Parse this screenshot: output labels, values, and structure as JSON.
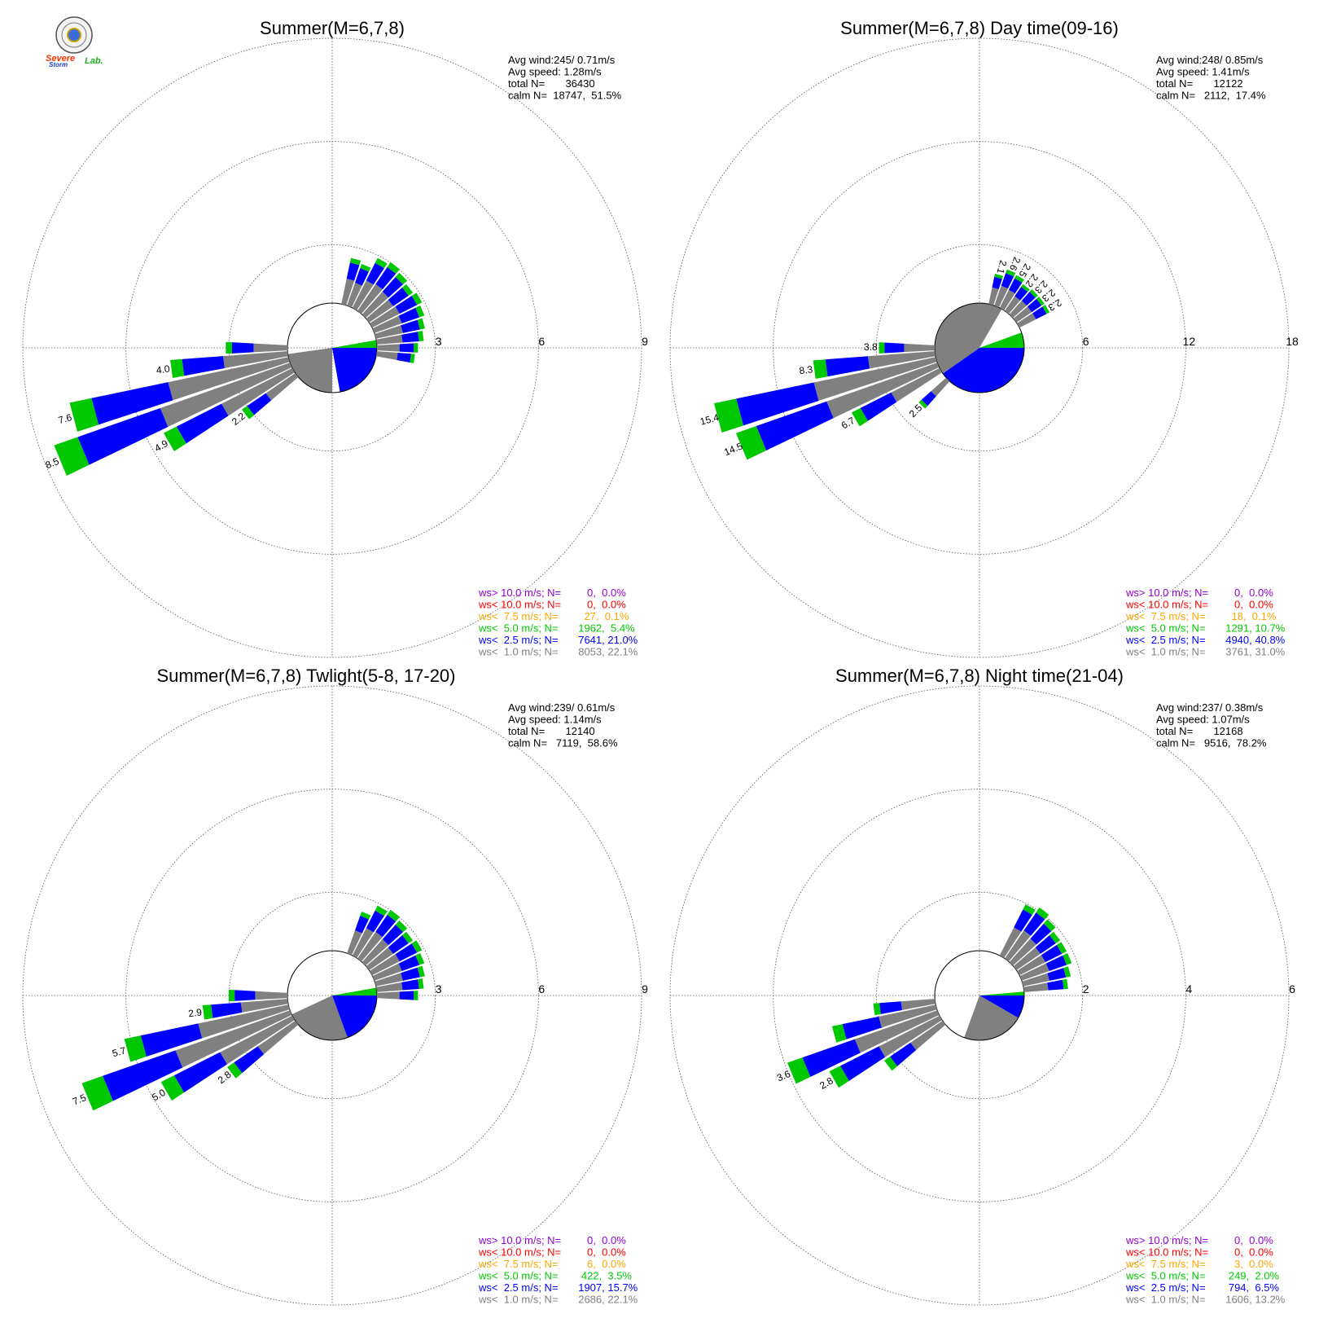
{
  "colors": {
    "ws_gt_10": "#9400d3",
    "ws_lt_10": "#ff0000",
    "ws_lt_7_5": "#ffa500",
    "ws_lt_5": "#00c800",
    "ws_lt_2_5": "#0000ff",
    "ws_lt_1": "#808080"
  },
  "logo": {
    "text_lines": [
      "Severe",
      "Storm",
      "Lab."
    ]
  },
  "chart_data": [
    {
      "type": "wind-rose",
      "title": "Summer(M=6,7,8)",
      "ticks": [
        "3",
        "6",
        "9"
      ],
      "rmax": 9,
      "stats": [
        "Avg wind:245/ 0.71m/s",
        "Avg speed: 1.28m/s",
        "total N=       36430",
        "calm N=  18747,  51.5%"
      ],
      "legend": [
        {
          "label": "ws> 10.0 m/s; N=",
          "value": "     0,  0.0%",
          "color": "#9400d3"
        },
        {
          "label": "ws< 10.0 m/s; N=",
          "value": "     0,  0.0%",
          "color": "#ff0000"
        },
        {
          "label": "ws<  7.5 m/s; N=",
          "value": "    27,  0.1%",
          "color": "#ffa500"
        },
        {
          "label": "ws<  5.0 m/s; N=",
          "value": "  1962,  5.4%",
          "color": "#00c800"
        },
        {
          "label": "ws<  2.5 m/s; N=",
          "value": "  7641, 21.0%",
          "color": "#0000ff"
        },
        {
          "label": "ws<  1.0 m/s; N=",
          "value": "  8053, 22.1%",
          "color": "#808080"
        }
      ],
      "sectors": [
        {
          "dir": 247.5,
          "value": 8.5,
          "label": "8.5"
        },
        {
          "dir": 240,
          "value": 4.9,
          "label": "4.9"
        },
        {
          "dir": 232.5,
          "value": 2.2,
          "label": "2.2"
        },
        {
          "dir": 255,
          "value": 7.6,
          "label": "7.6"
        },
        {
          "dir": 262.5,
          "value": 4.0,
          "label": "4.0"
        },
        {
          "dir": 270,
          "value": 2.1,
          "label": ""
        },
        {
          "dir": 30,
          "value": 1.9,
          "label": ""
        },
        {
          "dir": 37.5,
          "value": 2.0,
          "label": ""
        },
        {
          "dir": 45,
          "value": 1.9,
          "label": ""
        },
        {
          "dir": 52.5,
          "value": 1.8,
          "label": ""
        },
        {
          "dir": 60,
          "value": 1.9,
          "label": ""
        },
        {
          "dir": 67.5,
          "value": 1.8,
          "label": ""
        },
        {
          "dir": 75,
          "value": 1.7,
          "label": ""
        },
        {
          "dir": 82.5,
          "value": 1.6,
          "label": ""
        },
        {
          "dir": 22.5,
          "value": 1.5,
          "label": ""
        },
        {
          "dir": 15,
          "value": 1.6,
          "label": ""
        },
        {
          "dir": 90,
          "value": 1.4,
          "label": ""
        },
        {
          "dir": 97.5,
          "value": 1.3,
          "label": ""
        }
      ],
      "calm_wedges": [
        {
          "from": 90,
          "to": 170,
          "r": 1.6,
          "color": "#0000ff"
        },
        {
          "from": 180,
          "to": 262,
          "r": 1.4,
          "color": "#808080"
        },
        {
          "from": 80,
          "to": 90,
          "r": 1.4,
          "color": "#00c800"
        }
      ]
    },
    {
      "type": "wind-rose",
      "title": "Summer(M=6,7,8) Day time(09-16)",
      "ticks": [
        "6",
        "12",
        "18"
      ],
      "rmax": 18,
      "stats": [
        "Avg wind:248/ 0.85m/s",
        "Avg speed: 1.41m/s",
        "total N=       12122",
        "calm N=   2112,  17.4%"
      ],
      "legend": [
        {
          "label": "ws> 10.0 m/s; N=",
          "value": "     0,  0.0%",
          "color": "#9400d3"
        },
        {
          "label": "ws< 10.0 m/s; N=",
          "value": "     0,  0.0%",
          "color": "#ff0000"
        },
        {
          "label": "ws<  7.5 m/s; N=",
          "value": "    18,  0.1%",
          "color": "#ffa500"
        },
        {
          "label": "ws<  5.0 m/s; N=",
          "value": "  1291, 10.7%",
          "color": "#00c800"
        },
        {
          "label": "ws<  2.5 m/s; N=",
          "value": "  4940, 40.8%",
          "color": "#0000ff"
        },
        {
          "label": "ws<  1.0 m/s; N=",
          "value": "  3761, 31.0%",
          "color": "#808080"
        }
      ],
      "sectors": [
        {
          "dir": 247.5,
          "value": 14.5,
          "label": "14.5"
        },
        {
          "dir": 255,
          "value": 15.4,
          "label": "15.4"
        },
        {
          "dir": 240,
          "value": 6.7,
          "label": "6.7"
        },
        {
          "dir": 262.5,
          "value": 8.3,
          "label": "8.3"
        },
        {
          "dir": 270,
          "value": 3.8,
          "label": "3.8"
        },
        {
          "dir": 225,
          "value": 2.5,
          "label": "2.5"
        },
        {
          "dir": 15,
          "value": 2.1,
          "label": "2.1"
        },
        {
          "dir": 22.5,
          "value": 2.6,
          "label": "2.6"
        },
        {
          "dir": 30,
          "value": 2.5,
          "label": "2.5"
        },
        {
          "dir": 37.5,
          "value": 2.2,
          "label": "2.2"
        },
        {
          "dir": 45,
          "value": 2.3,
          "label": "2.3"
        },
        {
          "dir": 52.5,
          "value": 2.3,
          "label": "2.3"
        },
        {
          "dir": 60,
          "value": 2.3,
          "label": "2.3"
        }
      ],
      "calm_wedges": [
        {
          "from": 90,
          "to": 235,
          "r": 3.2,
          "color": "#0000ff"
        },
        {
          "from": 235,
          "to": 390,
          "r": 3.4,
          "color": "#808080"
        },
        {
          "from": 70,
          "to": 90,
          "r": 3.0,
          "color": "#00c800"
        }
      ]
    },
    {
      "type": "wind-rose",
      "title": "Summer(M=6,7,8) Twlight(5-8, 17-20)",
      "ticks": [
        "3",
        "6",
        "9"
      ],
      "rmax": 9,
      "stats": [
        "Avg wind:239/ 0.61m/s",
        "Avg speed: 1.14m/s",
        "total N=       12140",
        "calm N=   7119,  58.6%"
      ],
      "legend": [
        {
          "label": "ws> 10.0 m/s; N=",
          "value": "     0,  0.0%",
          "color": "#9400d3"
        },
        {
          "label": "ws< 10.0 m/s; N=",
          "value": "     0,  0.0%",
          "color": "#ff0000"
        },
        {
          "label": "ws<  7.5 m/s; N=",
          "value": "     6,  0.0%",
          "color": "#ffa500"
        },
        {
          "label": "ws<  5.0 m/s; N=",
          "value": "   422,  3.5%",
          "color": "#00c800"
        },
        {
          "label": "ws<  2.5 m/s; N=",
          "value": "  1907, 15.7%",
          "color": "#0000ff"
        },
        {
          "label": "ws<  1.0 m/s; N=",
          "value": "  2686, 22.1%",
          "color": "#808080"
        }
      ],
      "sectors": [
        {
          "dir": 247.5,
          "value": 7.5,
          "label": "7.5"
        },
        {
          "dir": 240,
          "value": 5.0,
          "label": "5.0"
        },
        {
          "dir": 232.5,
          "value": 2.8,
          "label": "2.8"
        },
        {
          "dir": 255,
          "value": 5.7,
          "label": "5.7"
        },
        {
          "dir": 262.5,
          "value": 2.9,
          "label": "2.9"
        },
        {
          "dir": 270,
          "value": 2.0,
          "label": ""
        },
        {
          "dir": 30,
          "value": 1.9,
          "label": ""
        },
        {
          "dir": 37.5,
          "value": 2.0,
          "label": ""
        },
        {
          "dir": 45,
          "value": 1.9,
          "label": ""
        },
        {
          "dir": 52.5,
          "value": 1.8,
          "label": ""
        },
        {
          "dir": 60,
          "value": 1.9,
          "label": ""
        },
        {
          "dir": 67.5,
          "value": 1.8,
          "label": ""
        },
        {
          "dir": 75,
          "value": 1.7,
          "label": ""
        },
        {
          "dir": 82.5,
          "value": 1.6,
          "label": ""
        },
        {
          "dir": 22.5,
          "value": 1.5,
          "label": ""
        },
        {
          "dir": 90,
          "value": 1.4,
          "label": ""
        }
      ],
      "calm_wedges": [
        {
          "from": 90,
          "to": 160,
          "r": 1.5,
          "color": "#0000ff"
        },
        {
          "from": 160,
          "to": 245,
          "r": 1.4,
          "color": "#808080"
        },
        {
          "from": 80,
          "to": 90,
          "r": 1.4,
          "color": "#00c800"
        }
      ]
    },
    {
      "type": "wind-rose",
      "title": "Summer(M=6,7,8) Night time(21-04)",
      "ticks": [
        "2",
        "4",
        "6"
      ],
      "rmax": 6,
      "stats": [
        "Avg wind:237/ 0.38m/s",
        "Avg speed: 1.07m/s",
        "total N=       12168",
        "calm N=   9516,  78.2%"
      ],
      "legend": [
        {
          "label": "ws> 10.0 m/s; N=",
          "value": "     0,  0.0%",
          "color": "#9400d3"
        },
        {
          "label": "ws< 10.0 m/s; N=",
          "value": "     0,  0.0%",
          "color": "#ff0000"
        },
        {
          "label": "ws<  7.5 m/s; N=",
          "value": "     3,  0.0%",
          "color": "#ffa500"
        },
        {
          "label": "ws<  5.0 m/s; N=",
          "value": "   249,  2.0%",
          "color": "#00c800"
        },
        {
          "label": "ws<  2.5 m/s; N=",
          "value": "   794,  6.5%",
          "color": "#0000ff"
        },
        {
          "label": "ws<  1.0 m/s; N=",
          "value": "  1606, 13.2%",
          "color": "#808080"
        }
      ],
      "sectors": [
        {
          "dir": 247.5,
          "value": 3.6,
          "label": "3.6"
        },
        {
          "dir": 240,
          "value": 2.8,
          "label": "2.8"
        },
        {
          "dir": 232.5,
          "value": 1.6,
          "label": ""
        },
        {
          "dir": 255,
          "value": 2.4,
          "label": ""
        },
        {
          "dir": 262.5,
          "value": 1.4,
          "label": ""
        },
        {
          "dir": 30,
          "value": 1.3,
          "label": ""
        },
        {
          "dir": 37.5,
          "value": 1.4,
          "label": ""
        },
        {
          "dir": 45,
          "value": 1.3,
          "label": ""
        },
        {
          "dir": 52.5,
          "value": 1.2,
          "label": ""
        },
        {
          "dir": 60,
          "value": 1.2,
          "label": ""
        },
        {
          "dir": 67.5,
          "value": 1.2,
          "label": ""
        },
        {
          "dir": 75,
          "value": 1.1,
          "label": ""
        },
        {
          "dir": 82.5,
          "value": 1.0,
          "label": ""
        }
      ],
      "calm_wedges": [
        {
          "from": 90,
          "to": 120,
          "r": 1.0,
          "color": "#0000ff"
        },
        {
          "from": 120,
          "to": 200,
          "r": 0.9,
          "color": "#808080"
        },
        {
          "from": 85,
          "to": 90,
          "r": 1.0,
          "color": "#00c800"
        }
      ]
    }
  ]
}
